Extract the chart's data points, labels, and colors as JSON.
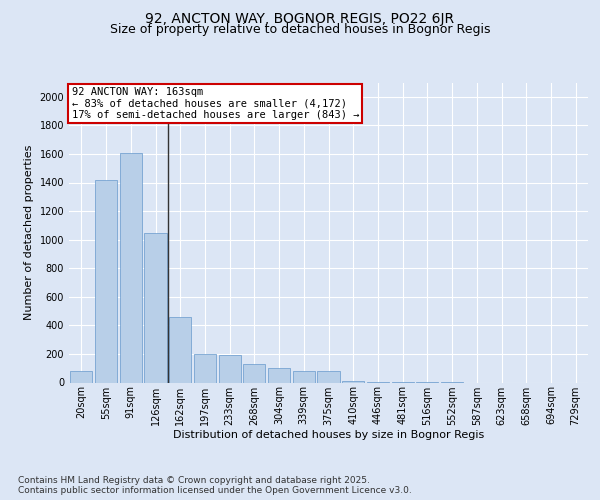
{
  "title_line1": "92, ANCTON WAY, BOGNOR REGIS, PO22 6JR",
  "title_line2": "Size of property relative to detached houses in Bognor Regis",
  "xlabel": "Distribution of detached houses by size in Bognor Regis",
  "ylabel": "Number of detached properties",
  "categories": [
    "20sqm",
    "55sqm",
    "91sqm",
    "126sqm",
    "162sqm",
    "197sqm",
    "233sqm",
    "268sqm",
    "304sqm",
    "339sqm",
    "375sqm",
    "410sqm",
    "446sqm",
    "481sqm",
    "516sqm",
    "552sqm",
    "587sqm",
    "623sqm",
    "658sqm",
    "694sqm",
    "729sqm"
  ],
  "values": [
    80,
    1420,
    1610,
    1050,
    460,
    200,
    195,
    130,
    100,
    80,
    80,
    8,
    4,
    2,
    1,
    1,
    0,
    0,
    0,
    0,
    0
  ],
  "bar_color": "#b8cfe8",
  "bar_edgecolor": "#6699cc",
  "vline_position": 3.5,
  "vline_color": "#333333",
  "annotation_text": "92 ANCTON WAY: 163sqm\n← 83% of detached houses are smaller (4,172)\n17% of semi-detached houses are larger (843) →",
  "annotation_box_color": "#ffffff",
  "annotation_box_edgecolor": "#cc0000",
  "ylim": [
    0,
    2100
  ],
  "yticks": [
    0,
    200,
    400,
    600,
    800,
    1000,
    1200,
    1400,
    1600,
    1800,
    2000
  ],
  "footer_line1": "Contains HM Land Registry data © Crown copyright and database right 2025.",
  "footer_line2": "Contains public sector information licensed under the Open Government Licence v3.0.",
  "background_color": "#dce6f5",
  "plot_bg_color": "#dce6f5",
  "grid_color": "#ffffff",
  "title_fontsize": 10,
  "subtitle_fontsize": 9,
  "axis_label_fontsize": 8,
  "tick_fontsize": 7,
  "footer_fontsize": 6.5,
  "annotation_fontsize": 7.5
}
